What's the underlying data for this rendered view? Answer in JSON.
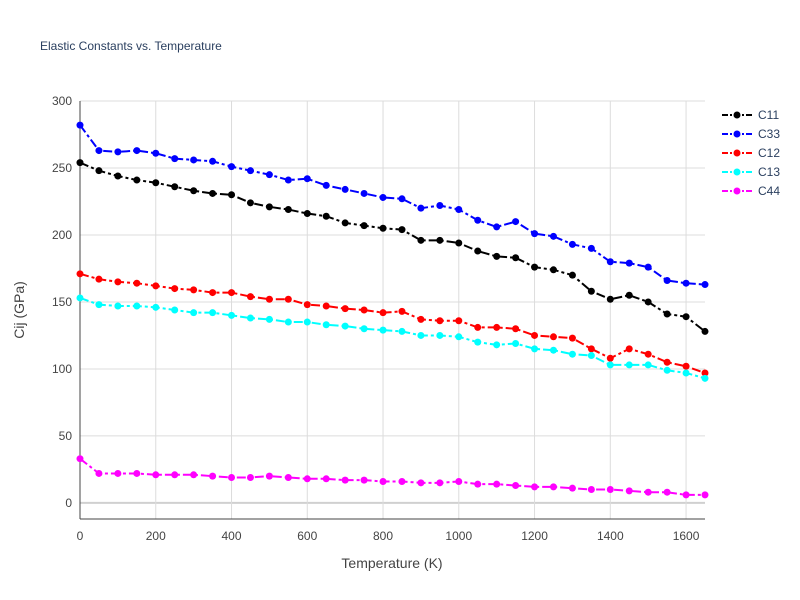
{
  "chart_data": {
    "type": "line",
    "title": "Elastic Constants vs. Temperature",
    "xlabel": "Temperature (K)",
    "ylabel": "Cij (GPa)",
    "xlim": [
      0,
      1650
    ],
    "ylim": [
      -12,
      300
    ],
    "x_ticks": [
      0,
      200,
      400,
      600,
      800,
      1000,
      1200,
      1400,
      1600
    ],
    "y_ticks": [
      0,
      50,
      100,
      150,
      200,
      250,
      300
    ],
    "grid": true,
    "legend_position": "top-right",
    "line_style": "dash-dot with markers",
    "x": [
      0,
      50,
      100,
      150,
      200,
      250,
      300,
      350,
      400,
      450,
      500,
      550,
      600,
      650,
      700,
      750,
      800,
      850,
      900,
      950,
      1000,
      1050,
      1100,
      1150,
      1200,
      1250,
      1300,
      1350,
      1400,
      1450,
      1500,
      1550,
      1600,
      1650
    ],
    "series": [
      {
        "name": "C11",
        "color": "#000000",
        "values": [
          254,
          248,
          244,
          241,
          239,
          236,
          233,
          231,
          230,
          224,
          221,
          219,
          216,
          214,
          209,
          207,
          205,
          204,
          196,
          196,
          194,
          188,
          184,
          183,
          176,
          174,
          170,
          158,
          152,
          155,
          150,
          141,
          139,
          128
        ]
      },
      {
        "name": "C33",
        "color": "#0000ff",
        "values": [
          282,
          263,
          262,
          263,
          261,
          257,
          256,
          255,
          251,
          248,
          245,
          241,
          242,
          237,
          234,
          231,
          228,
          227,
          220,
          222,
          219,
          211,
          206,
          210,
          201,
          199,
          193,
          190,
          180,
          179,
          176,
          166,
          164,
          163
        ]
      },
      {
        "name": "C12",
        "color": "#ff0000",
        "values": [
          171,
          167,
          165,
          164,
          162,
          160,
          159,
          157,
          157,
          154,
          152,
          152,
          148,
          147,
          145,
          144,
          142,
          143,
          137,
          136,
          136,
          131,
          131,
          130,
          125,
          124,
          123,
          115,
          108,
          115,
          111,
          105,
          102,
          97
        ]
      },
      {
        "name": "C13",
        "color": "#00ffff",
        "values": [
          153,
          148,
          147,
          147,
          146,
          144,
          142,
          142,
          140,
          138,
          137,
          135,
          135,
          133,
          132,
          130,
          129,
          128,
          125,
          125,
          124,
          120,
          118,
          119,
          115,
          114,
          111,
          110,
          103,
          103,
          103,
          99,
          97,
          93
        ]
      },
      {
        "name": "C44",
        "color": "#ff00ff",
        "values": [
          33,
          22,
          22,
          22,
          21,
          21,
          21,
          20,
          19,
          19,
          20,
          19,
          18,
          18,
          17,
          17,
          16,
          16,
          15,
          15,
          16,
          14,
          14,
          13,
          12,
          12,
          11,
          10,
          10,
          9,
          8,
          8,
          6,
          6
        ]
      }
    ]
  }
}
